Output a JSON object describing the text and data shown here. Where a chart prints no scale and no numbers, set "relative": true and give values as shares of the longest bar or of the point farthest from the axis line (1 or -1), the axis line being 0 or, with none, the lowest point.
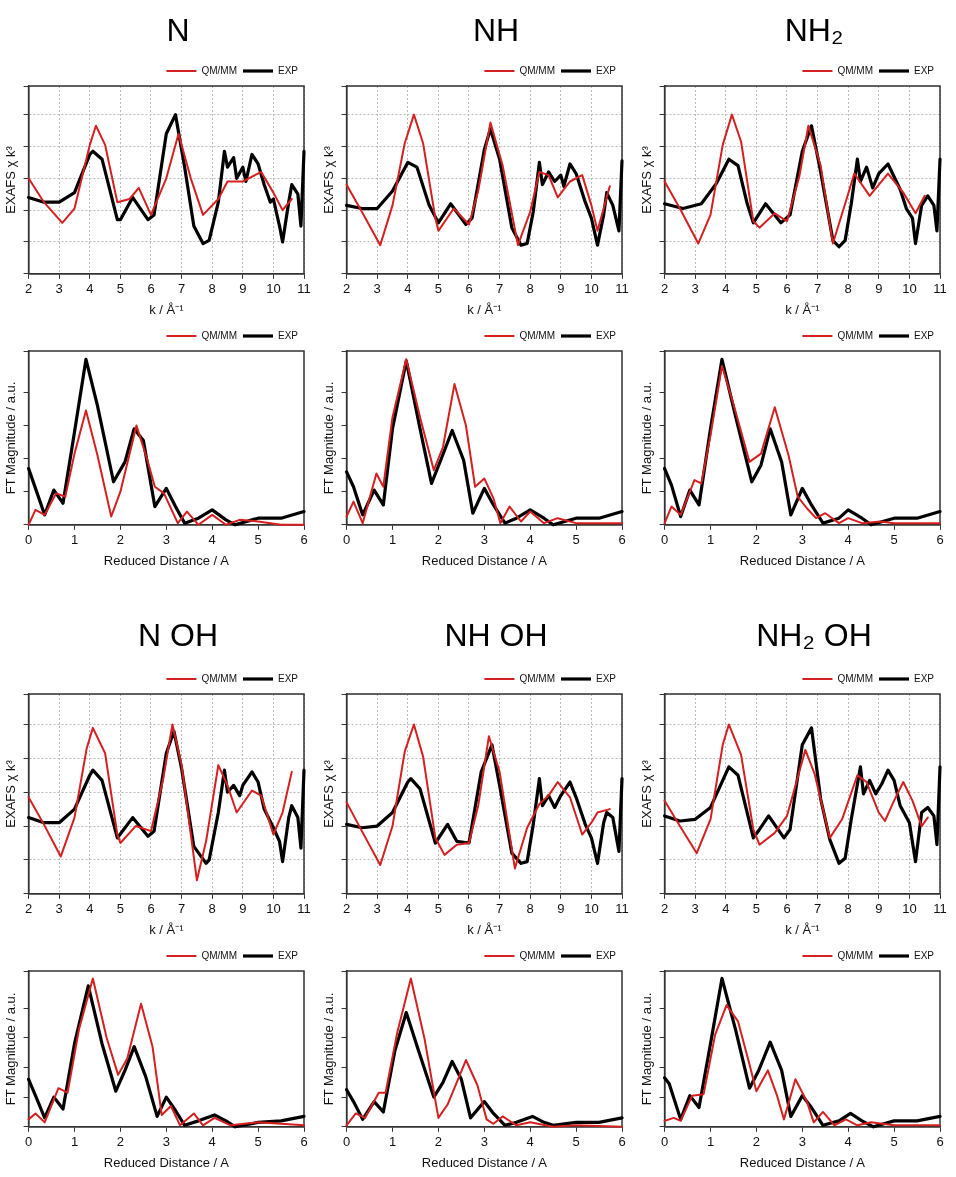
{
  "chart_data": [
    {
      "type": "line",
      "title": "N",
      "xlabel": "k / Å⁻¹",
      "ylabel": "EXAFS χ k³",
      "xlim": [
        2,
        11
      ],
      "xticks": [
        2,
        3,
        4,
        5,
        6,
        7,
        8,
        9,
        10,
        11
      ],
      "relative": true,
      "grid": true,
      "legend": "top right",
      "tick_labels": "x",
      "marker": "none",
      "line_style": "solid",
      "series": [
        {
          "name": "QM/MM",
          "color": "#d42020",
          "x": [
            2.0,
            2.5,
            3.1,
            3.5,
            4.0,
            4.2,
            4.5,
            4.9,
            5.3,
            5.6,
            6.0,
            6.5,
            6.9,
            7.3,
            7.7,
            8.2,
            8.5,
            9.0,
            9.6,
            10.0,
            10.3,
            10.6
          ],
          "values": [
            0.6,
            0.45,
            0.32,
            0.41,
            0.81,
            0.93,
            0.81,
            0.45,
            0.47,
            0.54,
            0.37,
            0.6,
            0.88,
            0.6,
            0.37,
            0.47,
            0.58,
            0.58,
            0.64,
            0.51,
            0.4,
            0.47
          ]
        },
        {
          "name": "EXP",
          "color": "#000000",
          "x": [
            2.0,
            2.5,
            3.0,
            3.5,
            4.0,
            4.1,
            4.4,
            4.9,
            5.0,
            5.4,
            5.9,
            6.1,
            6.5,
            6.8,
            7.1,
            7.4,
            7.7,
            7.9,
            8.2,
            8.4,
            8.5,
            8.7,
            8.8,
            9.0,
            9.1,
            9.3,
            9.5,
            9.7,
            9.9,
            10.0,
            10.2,
            10.3,
            10.5,
            10.6,
            10.8,
            10.9,
            11.0
          ],
          "values": [
            0.48,
            0.45,
            0.45,
            0.51,
            0.75,
            0.77,
            0.72,
            0.34,
            0.34,
            0.48,
            0.34,
            0.37,
            0.88,
            1.0,
            0.67,
            0.3,
            0.19,
            0.21,
            0.45,
            0.77,
            0.67,
            0.73,
            0.6,
            0.67,
            0.58,
            0.75,
            0.69,
            0.56,
            0.45,
            0.47,
            0.3,
            0.2,
            0.45,
            0.56,
            0.5,
            0.3,
            0.77
          ]
        }
      ]
    },
    {
      "type": "line",
      "title": "NH",
      "xlabel": "k / Å⁻¹",
      "ylabel": "EXAFS χ k³",
      "xlim": [
        2,
        11
      ],
      "xticks": [
        2,
        3,
        4,
        5,
        6,
        7,
        8,
        9,
        10,
        11
      ],
      "relative": true,
      "grid": true,
      "legend": "top right",
      "tick_labels": "x",
      "marker": "none",
      "line_style": "solid",
      "series": [
        {
          "name": "QM/MM",
          "color": "#d42020",
          "x": [
            2.0,
            2.5,
            3.1,
            3.5,
            3.9,
            4.2,
            4.5,
            4.9,
            5.0,
            5.5,
            6.0,
            6.3,
            6.7,
            7.1,
            7.6,
            8.0,
            8.3,
            8.6,
            8.9,
            9.3,
            9.7,
            10.0,
            10.2,
            10.6
          ],
          "values": [
            0.56,
            0.39,
            0.18,
            0.43,
            0.82,
            1.0,
            0.82,
            0.35,
            0.27,
            0.41,
            0.31,
            0.52,
            0.95,
            0.68,
            0.18,
            0.39,
            0.64,
            0.62,
            0.48,
            0.58,
            0.62,
            0.43,
            0.27,
            0.55
          ]
        },
        {
          "name": "EXP",
          "color": "#000000",
          "x": [
            2.0,
            2.5,
            3.0,
            3.5,
            4.0,
            4.3,
            4.7,
            5.0,
            5.4,
            5.9,
            6.1,
            6.5,
            6.7,
            7.0,
            7.4,
            7.7,
            7.9,
            8.1,
            8.3,
            8.4,
            8.6,
            8.8,
            9.0,
            9.1,
            9.3,
            9.5,
            9.8,
            10.0,
            10.2,
            10.4,
            10.5,
            10.7,
            10.9,
            11.0
          ],
          "values": [
            0.43,
            0.41,
            0.41,
            0.52,
            0.7,
            0.67,
            0.43,
            0.32,
            0.44,
            0.31,
            0.35,
            0.78,
            0.91,
            0.72,
            0.29,
            0.18,
            0.19,
            0.39,
            0.7,
            0.56,
            0.64,
            0.58,
            0.62,
            0.55,
            0.69,
            0.63,
            0.45,
            0.35,
            0.18,
            0.37,
            0.51,
            0.43,
            0.27,
            0.71
          ]
        }
      ]
    },
    {
      "type": "line",
      "title": "NH₂",
      "xlabel": "k / Å⁻¹",
      "ylabel": "EXAFS χ k³",
      "xlim": [
        2,
        11
      ],
      "xticks": [
        2,
        3,
        4,
        5,
        6,
        7,
        8,
        9,
        10,
        11
      ],
      "relative": true,
      "grid": true,
      "legend": "top right",
      "tick_labels": "x",
      "marker": "none",
      "line_style": "solid",
      "series": [
        {
          "name": "QM/MM",
          "color": "#d42020",
          "x": [
            2.0,
            2.5,
            3.1,
            3.5,
            3.9,
            4.2,
            4.5,
            4.9,
            5.1,
            5.6,
            6.0,
            6.4,
            6.7,
            7.1,
            7.5,
            7.9,
            8.2,
            8.7,
            9.3,
            9.8,
            10.2,
            10.5
          ],
          "values": [
            0.58,
            0.41,
            0.19,
            0.37,
            0.81,
            1.0,
            0.83,
            0.33,
            0.29,
            0.38,
            0.33,
            0.61,
            0.93,
            0.68,
            0.19,
            0.44,
            0.63,
            0.49,
            0.63,
            0.51,
            0.38,
            0.49
          ]
        },
        {
          "name": "EXP",
          "color": "#000000",
          "x": [
            2.0,
            2.6,
            3.2,
            3.7,
            4.1,
            4.4,
            4.7,
            4.9,
            5.3,
            5.8,
            6.1,
            6.5,
            6.8,
            7.1,
            7.5,
            7.7,
            7.9,
            8.1,
            8.3,
            8.4,
            8.6,
            8.8,
            9.0,
            9.3,
            9.5,
            9.7,
            9.9,
            10.1,
            10.2,
            10.4,
            10.6,
            10.8,
            10.9,
            11.0
          ],
          "values": [
            0.44,
            0.41,
            0.44,
            0.57,
            0.72,
            0.68,
            0.44,
            0.32,
            0.44,
            0.32,
            0.37,
            0.77,
            0.93,
            0.64,
            0.21,
            0.17,
            0.21,
            0.44,
            0.72,
            0.58,
            0.67,
            0.54,
            0.63,
            0.69,
            0.61,
            0.53,
            0.41,
            0.35,
            0.19,
            0.43,
            0.49,
            0.43,
            0.27,
            0.72
          ]
        }
      ]
    },
    {
      "type": "line",
      "xlabel": "Reduced Distance / A",
      "ylabel": "FT Magnitude / a.u.",
      "xlim": [
        0,
        6
      ],
      "xticks": [
        0,
        1,
        2,
        3,
        4,
        5,
        6
      ],
      "relative": true,
      "legend": "top right",
      "tick_labels": "x",
      "marker": "none",
      "line_style": "solid",
      "series": [
        {
          "name": "QM/MM",
          "color": "#d42020",
          "x": [
            0.0,
            0.15,
            0.35,
            0.6,
            0.8,
            1.0,
            1.25,
            1.5,
            1.8,
            2.0,
            2.35,
            2.6,
            2.75,
            2.95,
            3.25,
            3.45,
            3.7,
            4.0,
            4.3,
            4.6,
            5.0,
            5.5,
            6.0
          ],
          "values": [
            0,
            0.09,
            0.06,
            0.19,
            0.17,
            0.43,
            0.69,
            0.42,
            0.05,
            0.2,
            0.6,
            0.38,
            0.23,
            0.19,
            0.01,
            0.08,
            0,
            0.06,
            0,
            0.03,
            0.02,
            0,
            0
          ]
        },
        {
          "name": "EXP",
          "color": "#000000",
          "x": [
            0.0,
            0.15,
            0.35,
            0.55,
            0.75,
            1.0,
            1.25,
            1.5,
            1.85,
            2.1,
            2.3,
            2.5,
            2.75,
            3.0,
            3.2,
            3.4,
            3.7,
            4.0,
            4.3,
            4.5,
            5.0,
            5.5,
            6.0
          ],
          "values": [
            0.34,
            0.22,
            0.06,
            0.21,
            0.13,
            0.56,
            1.0,
            0.72,
            0.26,
            0.38,
            0.58,
            0.51,
            0.11,
            0.22,
            0.11,
            0.01,
            0.04,
            0.09,
            0.03,
            0,
            0.04,
            0.04,
            0.08
          ]
        }
      ]
    },
    {
      "type": "line",
      "xlabel": "Reduced Distance / A",
      "ylabel": "FT Magnitude / a.u.",
      "xlim": [
        0,
        6
      ],
      "xticks": [
        0,
        1,
        2,
        3,
        4,
        5,
        6
      ],
      "relative": true,
      "legend": "top right",
      "tick_labels": "x",
      "marker": "none",
      "line_style": "solid",
      "series": [
        {
          "name": "QM/MM",
          "color": "#d42020",
          "x": [
            0.0,
            0.15,
            0.35,
            0.65,
            0.8,
            1.0,
            1.3,
            1.6,
            1.9,
            2.1,
            2.35,
            2.6,
            2.8,
            3.0,
            3.2,
            3.35,
            3.55,
            3.8,
            4.0,
            4.3,
            4.6,
            5.0,
            6.0
          ],
          "values": [
            0.05,
            0.14,
            0.01,
            0.31,
            0.23,
            0.65,
            1.0,
            0.65,
            0.33,
            0.47,
            0.85,
            0.6,
            0.23,
            0.28,
            0.16,
            0.01,
            0.11,
            0.02,
            0.08,
            0.01,
            0.04,
            0.01,
            0.01
          ]
        },
        {
          "name": "EXP",
          "color": "#000000",
          "x": [
            0.0,
            0.15,
            0.35,
            0.6,
            0.8,
            1.0,
            1.3,
            1.6,
            1.85,
            2.05,
            2.3,
            2.55,
            2.75,
            3.0,
            3.2,
            3.45,
            3.7,
            4.0,
            4.3,
            4.5,
            5.0,
            5.5,
            6.0
          ],
          "values": [
            0.32,
            0.23,
            0.06,
            0.21,
            0.12,
            0.58,
            0.99,
            0.58,
            0.25,
            0.39,
            0.57,
            0.39,
            0.07,
            0.22,
            0.12,
            0.01,
            0.04,
            0.09,
            0.04,
            0,
            0.04,
            0.04,
            0.08
          ]
        }
      ]
    },
    {
      "type": "line",
      "xlabel": "Reduced Distance / A",
      "ylabel": "FT Magnitude / a.u.",
      "xlim": [
        0,
        6
      ],
      "xticks": [
        0,
        1,
        2,
        3,
        4,
        5,
        6
      ],
      "relative": true,
      "legend": "top right",
      "tick_labels": "x",
      "marker": "none",
      "line_style": "solid",
      "series": [
        {
          "name": "QM/MM",
          "color": "#d42020",
          "x": [
            0.0,
            0.15,
            0.35,
            0.65,
            0.8,
            1.0,
            1.25,
            1.5,
            1.85,
            2.1,
            2.4,
            2.7,
            2.9,
            3.1,
            3.3,
            3.5,
            3.8,
            4.0,
            4.3,
            4.7,
            5.0,
            6.0
          ],
          "values": [
            0.01,
            0.11,
            0.06,
            0.27,
            0.25,
            0.54,
            0.96,
            0.73,
            0.38,
            0.43,
            0.71,
            0.42,
            0.17,
            0.1,
            0.04,
            0.07,
            0.01,
            0.04,
            0.01,
            0.02,
            0.01,
            0.01
          ]
        },
        {
          "name": "EXP",
          "color": "#000000",
          "x": [
            0.0,
            0.15,
            0.35,
            0.55,
            0.75,
            1.0,
            1.25,
            1.55,
            1.9,
            2.1,
            2.3,
            2.55,
            2.75,
            3.0,
            3.2,
            3.45,
            3.8,
            4.0,
            4.3,
            4.5,
            5.0,
            5.5,
            6.0
          ],
          "values": [
            0.34,
            0.24,
            0.05,
            0.21,
            0.12,
            0.58,
            1.0,
            0.65,
            0.26,
            0.36,
            0.58,
            0.38,
            0.06,
            0.22,
            0.12,
            0.01,
            0.04,
            0.09,
            0.04,
            0,
            0.04,
            0.04,
            0.08
          ]
        }
      ]
    },
    {
      "type": "line",
      "title": "N OH",
      "xlabel": "k / Å⁻¹",
      "ylabel": "EXAFS χ k³",
      "xlim": [
        2,
        11
      ],
      "xticks": [
        2,
        3,
        4,
        5,
        6,
        7,
        8,
        9,
        10,
        11
      ],
      "relative": true,
      "grid": true,
      "legend": "top right",
      "tick_labels": "x",
      "marker": "none",
      "line_style": "solid",
      "series": [
        {
          "name": "QM/MM",
          "color": "#d42020",
          "x": [
            2.0,
            2.5,
            3.05,
            3.5,
            3.9,
            4.1,
            4.5,
            4.9,
            5.0,
            5.5,
            6.0,
            6.4,
            6.7,
            7.0,
            7.5,
            7.8,
            8.2,
            8.5,
            8.8,
            9.3,
            9.6,
            10.0,
            10.3,
            10.6
          ],
          "values": [
            0.57,
            0.41,
            0.22,
            0.45,
            0.86,
            0.98,
            0.83,
            0.35,
            0.3,
            0.4,
            0.37,
            0.68,
            1.0,
            0.76,
            0.08,
            0.31,
            0.76,
            0.64,
            0.48,
            0.61,
            0.58,
            0.35,
            0.48,
            0.72
          ]
        },
        {
          "name": "EXP",
          "color": "#000000",
          "x": [
            2.0,
            2.5,
            3.0,
            3.5,
            4.0,
            4.1,
            4.4,
            4.9,
            5.4,
            5.9,
            6.1,
            6.5,
            6.75,
            7.0,
            7.4,
            7.8,
            7.9,
            8.2,
            8.4,
            8.5,
            8.7,
            8.9,
            9.0,
            9.3,
            9.5,
            9.7,
            10.0,
            10.2,
            10.3,
            10.5,
            10.6,
            10.8,
            10.9,
            11.0
          ],
          "values": [
            0.45,
            0.42,
            0.42,
            0.5,
            0.7,
            0.73,
            0.67,
            0.33,
            0.45,
            0.34,
            0.37,
            0.83,
            0.96,
            0.74,
            0.28,
            0.18,
            0.2,
            0.48,
            0.73,
            0.6,
            0.64,
            0.58,
            0.64,
            0.72,
            0.66,
            0.5,
            0.39,
            0.31,
            0.19,
            0.45,
            0.52,
            0.45,
            0.27,
            0.73
          ]
        }
      ]
    },
    {
      "type": "line",
      "title": "NH OH",
      "xlabel": "k / Å⁻¹",
      "ylabel": "EXAFS χ k³",
      "xlim": [
        2,
        11
      ],
      "xticks": [
        2,
        3,
        4,
        5,
        6,
        7,
        8,
        9,
        10,
        11
      ],
      "relative": true,
      "grid": true,
      "legend": "top right",
      "tick_labels": "x",
      "marker": "none",
      "line_style": "solid",
      "series": [
        {
          "name": "QM/MM",
          "color": "#d42020",
          "x": [
            2.0,
            2.5,
            3.1,
            3.5,
            3.9,
            4.2,
            4.5,
            4.9,
            5.2,
            5.6,
            6.0,
            6.3,
            6.65,
            7.0,
            7.5,
            7.9,
            8.3,
            8.6,
            8.9,
            9.3,
            9.7,
            10.0,
            10.2,
            10.6
          ],
          "values": [
            0.54,
            0.37,
            0.17,
            0.4,
            0.84,
            1.0,
            0.81,
            0.33,
            0.23,
            0.29,
            0.3,
            0.52,
            0.93,
            0.72,
            0.15,
            0.39,
            0.53,
            0.58,
            0.66,
            0.57,
            0.35,
            0.42,
            0.48,
            0.5
          ]
        },
        {
          "name": "EXP",
          "color": "#000000",
          "x": [
            2.0,
            2.5,
            3.0,
            3.5,
            4.0,
            4.1,
            4.4,
            4.9,
            5.3,
            5.6,
            6.0,
            6.4,
            6.75,
            7.0,
            7.4,
            7.7,
            7.9,
            8.1,
            8.3,
            8.4,
            8.6,
            8.8,
            9.0,
            9.3,
            9.5,
            9.8,
            10.0,
            10.2,
            10.4,
            10.5,
            10.7,
            10.9,
            11.0
          ],
          "values": [
            0.41,
            0.39,
            0.4,
            0.48,
            0.66,
            0.68,
            0.62,
            0.3,
            0.41,
            0.31,
            0.3,
            0.72,
            0.88,
            0.64,
            0.24,
            0.18,
            0.19,
            0.41,
            0.68,
            0.52,
            0.58,
            0.51,
            0.58,
            0.66,
            0.57,
            0.41,
            0.33,
            0.18,
            0.42,
            0.48,
            0.45,
            0.25,
            0.68
          ]
        }
      ]
    },
    {
      "type": "line",
      "title": "NH₂ OH",
      "xlabel": "k / Å⁻¹",
      "ylabel": "EXAFS χ k³",
      "xlim": [
        2,
        11
      ],
      "xticks": [
        2,
        3,
        4,
        5,
        6,
        7,
        8,
        9,
        10,
        11
      ],
      "relative": true,
      "grid": true,
      "legend": "top right",
      "tick_labels": "x",
      "marker": "none",
      "line_style": "solid",
      "series": [
        {
          "name": "QM/MM",
          "color": "#d42020",
          "x": [
            2.0,
            2.5,
            3.05,
            3.5,
            3.9,
            4.1,
            4.5,
            4.9,
            5.1,
            5.6,
            6.0,
            6.6,
            6.9,
            7.4,
            7.8,
            8.3,
            8.6,
            9.0,
            9.2,
            9.5,
            9.8,
            10.1,
            10.4,
            10.6
          ],
          "values": [
            0.55,
            0.4,
            0.24,
            0.44,
            0.88,
            1.0,
            0.82,
            0.38,
            0.29,
            0.36,
            0.46,
            0.85,
            0.71,
            0.33,
            0.44,
            0.7,
            0.66,
            0.48,
            0.43,
            0.55,
            0.66,
            0.55,
            0.4,
            0.45
          ]
        },
        {
          "name": "EXP",
          "color": "#000000",
          "x": [
            2.0,
            2.5,
            3.0,
            3.5,
            4.0,
            4.1,
            4.4,
            4.9,
            5.1,
            5.4,
            5.9,
            6.1,
            6.5,
            6.8,
            7.1,
            7.4,
            7.7,
            7.9,
            8.1,
            8.4,
            8.5,
            8.7,
            8.9,
            9.1,
            9.3,
            9.5,
            9.7,
            10.0,
            10.2,
            10.4,
            10.6,
            10.8,
            10.9,
            11.0
          ],
          "values": [
            0.46,
            0.43,
            0.44,
            0.51,
            0.71,
            0.75,
            0.7,
            0.33,
            0.38,
            0.46,
            0.33,
            0.38,
            0.88,
            0.98,
            0.56,
            0.32,
            0.18,
            0.21,
            0.44,
            0.75,
            0.59,
            0.67,
            0.59,
            0.65,
            0.73,
            0.67,
            0.52,
            0.42,
            0.19,
            0.48,
            0.51,
            0.46,
            0.29,
            0.75
          ]
        }
      ]
    },
    {
      "type": "line",
      "xlabel": "Reduced Distance / A",
      "ylabel": "FT Magnitude / a.u.",
      "xlim": [
        0,
        6
      ],
      "xticks": [
        0,
        1,
        2,
        3,
        4,
        5,
        6
      ],
      "relative": true,
      "legend": "top right",
      "tick_labels": "x",
      "marker": "none",
      "line_style": "solid",
      "series": [
        {
          "name": "QM/MM",
          "color": "#d42020",
          "x": [
            0.0,
            0.15,
            0.35,
            0.65,
            0.85,
            1.1,
            1.4,
            1.7,
            1.95,
            2.15,
            2.45,
            2.7,
            2.9,
            3.1,
            3.3,
            3.6,
            3.8,
            4.05,
            4.4,
            5.0,
            6.0
          ],
          "values": [
            0.05,
            0.09,
            0.03,
            0.26,
            0.23,
            0.66,
            1.0,
            0.6,
            0.35,
            0.46,
            0.83,
            0.54,
            0.08,
            0.14,
            0.01,
            0.09,
            0.01,
            0.06,
            0.01,
            0.03,
            0.01
          ]
        },
        {
          "name": "EXP",
          "color": "#000000",
          "x": [
            0.0,
            0.15,
            0.35,
            0.55,
            0.75,
            1.0,
            1.3,
            1.6,
            1.9,
            2.1,
            2.3,
            2.55,
            2.8,
            3.0,
            3.2,
            3.4,
            3.7,
            4.05,
            4.3,
            4.5,
            5.0,
            5.5,
            6.0
          ],
          "values": [
            0.32,
            0.21,
            0.06,
            0.2,
            0.12,
            0.56,
            0.95,
            0.56,
            0.24,
            0.38,
            0.54,
            0.34,
            0.07,
            0.2,
            0.11,
            0.01,
            0.04,
            0.08,
            0.04,
            0,
            0.03,
            0.04,
            0.07
          ]
        }
      ]
    },
    {
      "type": "line",
      "xlabel": "Reduced Distance / A",
      "ylabel": "FT Magnitude / a.u.",
      "xlim": [
        0,
        6
      ],
      "xticks": [
        0,
        1,
        2,
        3,
        4,
        5,
        6
      ],
      "relative": true,
      "legend": "top right",
      "tick_labels": "x",
      "marker": "none",
      "line_style": "solid",
      "series": [
        {
          "name": "QM/MM",
          "color": "#d42020",
          "x": [
            0.0,
            0.2,
            0.4,
            0.7,
            0.85,
            1.1,
            1.4,
            1.7,
            2.0,
            2.2,
            2.6,
            2.85,
            3.05,
            3.2,
            3.4,
            3.7,
            4.0,
            4.5,
            5.0,
            6.0
          ],
          "values": [
            0.01,
            0.09,
            0.06,
            0.23,
            0.23,
            0.63,
            1.0,
            0.59,
            0.06,
            0.15,
            0.45,
            0.28,
            0.05,
            0.02,
            0.07,
            0.01,
            0.03,
            0,
            0.01,
            0
          ]
        },
        {
          "name": "EXP",
          "color": "#000000",
          "x": [
            0.0,
            0.15,
            0.35,
            0.6,
            0.8,
            1.05,
            1.3,
            1.55,
            1.9,
            2.1,
            2.3,
            2.5,
            2.7,
            3.0,
            3.2,
            3.45,
            3.7,
            4.05,
            4.3,
            4.5,
            5.0,
            5.5,
            6.0
          ],
          "values": [
            0.25,
            0.17,
            0.05,
            0.17,
            0.1,
            0.51,
            0.77,
            0.53,
            0.2,
            0.3,
            0.44,
            0.32,
            0.06,
            0.17,
            0.09,
            0.01,
            0.03,
            0.07,
            0.03,
            0.01,
            0.03,
            0.03,
            0.06
          ]
        }
      ]
    },
    {
      "type": "line",
      "xlabel": "Reduced Distance / A",
      "ylabel": "FT Magnitude / a.u.",
      "xlim": [
        0,
        6
      ],
      "xticks": [
        0,
        1,
        2,
        3,
        4,
        5,
        6
      ],
      "relative": true,
      "legend": "top right",
      "tick_labels": "x",
      "marker": "none",
      "line_style": "solid",
      "series": [
        {
          "name": "QM/MM",
          "color": "#d42020",
          "x": [
            0.0,
            0.2,
            0.35,
            0.6,
            0.85,
            1.1,
            1.35,
            1.6,
            1.85,
            2.0,
            2.25,
            2.45,
            2.6,
            2.85,
            3.1,
            3.25,
            3.45,
            3.7,
            3.95,
            4.2,
            4.5,
            5.0,
            6.0
          ],
          "values": [
            0.04,
            0.06,
            0.04,
            0.21,
            0.22,
            0.62,
            0.82,
            0.71,
            0.42,
            0.24,
            0.38,
            0.21,
            0.05,
            0.32,
            0.17,
            0.03,
            0.1,
            0.01,
            0.05,
            0.01,
            0.03,
            0.01,
            0.01
          ]
        },
        {
          "name": "EXP",
          "color": "#000000",
          "x": [
            0.0,
            0.1,
            0.35,
            0.55,
            0.75,
            1.0,
            1.25,
            1.55,
            1.85,
            2.05,
            2.3,
            2.55,
            2.75,
            3.0,
            3.2,
            3.45,
            3.8,
            4.05,
            4.3,
            4.55,
            5.0,
            5.5,
            6.0
          ],
          "values": [
            0.33,
            0.29,
            0.05,
            0.21,
            0.13,
            0.56,
            1.0,
            0.65,
            0.26,
            0.38,
            0.57,
            0.38,
            0.07,
            0.21,
            0.13,
            0.01,
            0.04,
            0.09,
            0.04,
            0,
            0.04,
            0.04,
            0.07
          ]
        }
      ]
    }
  ]
}
